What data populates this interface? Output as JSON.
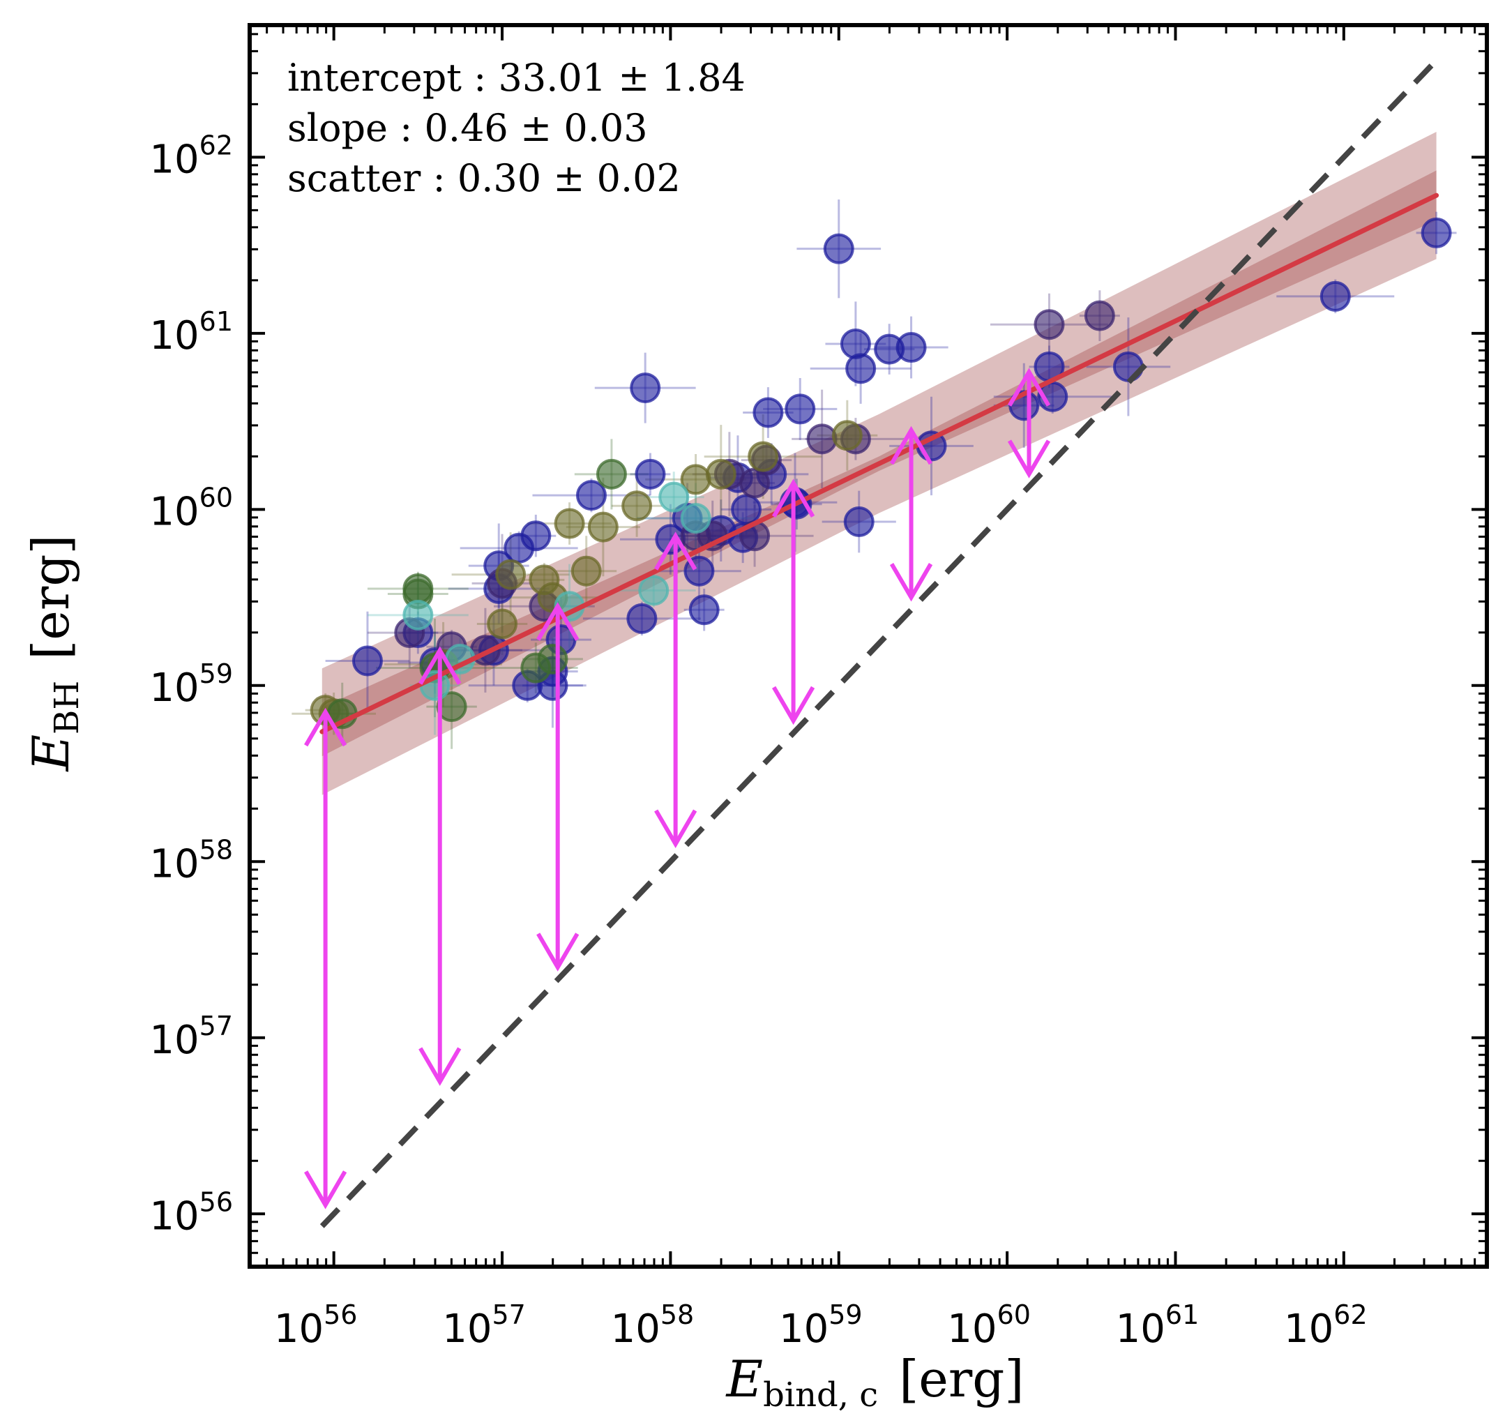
{
  "chart_data": {
    "type": "scatter",
    "title": "",
    "xlabel": {
      "main": "E",
      "sub": "bind, c",
      "unit": "[erg]"
    },
    "ylabel": {
      "main": "E",
      "sub": "BH",
      "unit": "[erg]"
    },
    "x_scale": "log",
    "y_scale": "log",
    "xlim_log10": [
      55.5,
      62.85
    ],
    "ylim_log10": [
      55.7,
      62.75
    ],
    "x_ticks_log10": [
      56,
      57,
      58,
      59,
      60,
      61,
      62
    ],
    "y_ticks_log10": [
      56,
      57,
      58,
      59,
      60,
      61,
      62
    ],
    "tick_base": "10",
    "annotations": [
      {
        "label": "intercept :",
        "value": "33.01 ± 1.84"
      },
      {
        "label": "slope :",
        "value": "0.46 ± 0.03"
      },
      {
        "label": "scatter :",
        "value": "0.30 ± 0.02"
      }
    ],
    "fit": {
      "intercept": 33.01,
      "slope": 0.46,
      "scatter": 0.3,
      "x_range_log10": [
        55.93,
        62.55
      ],
      "color": "#d43a44",
      "band_color": "#b46e6e"
    },
    "one_to_one_line": {
      "x_range_log10": [
        55.93,
        62.55
      ],
      "color": "#444444"
    },
    "colors": {
      "blue": "#1f1f9e",
      "green": "#3d6b2e",
      "olive": "#6b6a2a",
      "cyan": "#4fb6b0",
      "purple": "#3c2570",
      "arrow": "#ee44ee",
      "axis": "#000000"
    },
    "series": [
      {
        "name": "blue",
        "color": "#1f1f9e",
        "points": [
          [
            59.0,
            61.48
          ],
          [
            62.55,
            61.57
          ],
          [
            61.95,
            61.21
          ],
          [
            59.1,
            60.94
          ],
          [
            59.13,
            60.8
          ],
          [
            59.3,
            60.91
          ],
          [
            59.43,
            60.92
          ],
          [
            60.72,
            60.81
          ],
          [
            60.25,
            60.81
          ],
          [
            60.27,
            60.64
          ],
          [
            60.1,
            60.59
          ],
          [
            57.85,
            60.69
          ],
          [
            58.58,
            60.55
          ],
          [
            58.77,
            60.57
          ],
          [
            59.55,
            60.36
          ],
          [
            57.88,
            60.2
          ],
          [
            57.53,
            60.08
          ],
          [
            58.4,
            60.18
          ],
          [
            58.1,
            59.95
          ],
          [
            58.43,
            59.84
          ],
          [
            59.12,
            59.93
          ],
          [
            58.17,
            59.65
          ],
          [
            58.2,
            59.43
          ],
          [
            57.83,
            59.38
          ],
          [
            57.35,
            59.26
          ],
          [
            58.0,
            59.83
          ],
          [
            58.45,
            60.0
          ],
          [
            58.3,
            59.88
          ],
          [
            58.74,
            60.04
          ],
          [
            57.2,
            59.85
          ],
          [
            57.1,
            59.78
          ],
          [
            56.98,
            59.68
          ],
          [
            56.98,
            59.55
          ],
          [
            57.3,
            59.08
          ],
          [
            56.6,
            59.13
          ],
          [
            56.2,
            59.14
          ],
          [
            56.5,
            59.3
          ],
          [
            57.15,
            59.0
          ],
          [
            57.3,
            59.0
          ],
          [
            56.95,
            59.2
          ],
          [
            58.75,
            60.03
          ],
          [
            58.6,
            60.2
          ]
        ]
      },
      {
        "name": "purple",
        "color": "#3c2570",
        "points": [
          [
            60.55,
            61.1
          ],
          [
            60.25,
            61.05
          ],
          [
            58.9,
            60.4
          ],
          [
            59.1,
            60.4
          ],
          [
            58.57,
            60.28
          ],
          [
            58.35,
            60.2
          ],
          [
            58.25,
            59.85
          ],
          [
            58.15,
            59.85
          ],
          [
            58.5,
            59.85
          ],
          [
            57.0,
            59.58
          ],
          [
            57.25,
            59.45
          ],
          [
            56.7,
            59.22
          ],
          [
            56.9,
            59.2
          ],
          [
            56.45,
            59.3
          ],
          [
            58.5,
            60.15
          ]
        ]
      },
      {
        "name": "olive",
        "color": "#6b6a2a",
        "points": [
          [
            58.55,
            60.3
          ],
          [
            59.05,
            60.42
          ],
          [
            58.15,
            60.17
          ],
          [
            57.8,
            60.02
          ],
          [
            57.6,
            59.9
          ],
          [
            57.4,
            59.92
          ],
          [
            57.25,
            59.6
          ],
          [
            57.05,
            59.63
          ],
          [
            57.5,
            59.65
          ],
          [
            57.3,
            59.5
          ],
          [
            57.0,
            59.35
          ],
          [
            58.3,
            60.2
          ],
          [
            56.0,
            58.84
          ],
          [
            55.95,
            58.86
          ],
          [
            56.65,
            59.12
          ]
        ]
      },
      {
        "name": "green",
        "color": "#3d6b2e",
        "points": [
          [
            56.5,
            59.52
          ],
          [
            56.5,
            59.55
          ],
          [
            56.7,
            58.88
          ],
          [
            57.65,
            60.2
          ],
          [
            57.2,
            59.1
          ],
          [
            56.05,
            58.84
          ],
          [
            56.6,
            59.1
          ],
          [
            57.3,
            59.15
          ]
        ]
      },
      {
        "name": "cyan",
        "color": "#4fb6b0",
        "points": [
          [
            56.5,
            59.4
          ],
          [
            56.6,
            59.0
          ],
          [
            56.75,
            59.15
          ],
          [
            57.9,
            59.54
          ],
          [
            57.4,
            59.45
          ],
          [
            58.15,
            59.95
          ],
          [
            58.02,
            60.07
          ]
        ]
      }
    ],
    "double_arrows": [
      {
        "x": 55.95,
        "y_from": 56.05,
        "y_to": 58.85
      },
      {
        "x": 56.63,
        "y_from": 56.75,
        "y_to": 59.2
      },
      {
        "x": 57.33,
        "y_from": 57.4,
        "y_to": 59.45
      },
      {
        "x": 58.03,
        "y_from": 58.1,
        "y_to": 59.85
      },
      {
        "x": 58.73,
        "y_from": 58.8,
        "y_to": 60.15
      },
      {
        "x": 59.43,
        "y_from": 59.5,
        "y_to": 60.45
      },
      {
        "x": 60.13,
        "y_from": 60.2,
        "y_to": 60.78
      }
    ]
  }
}
